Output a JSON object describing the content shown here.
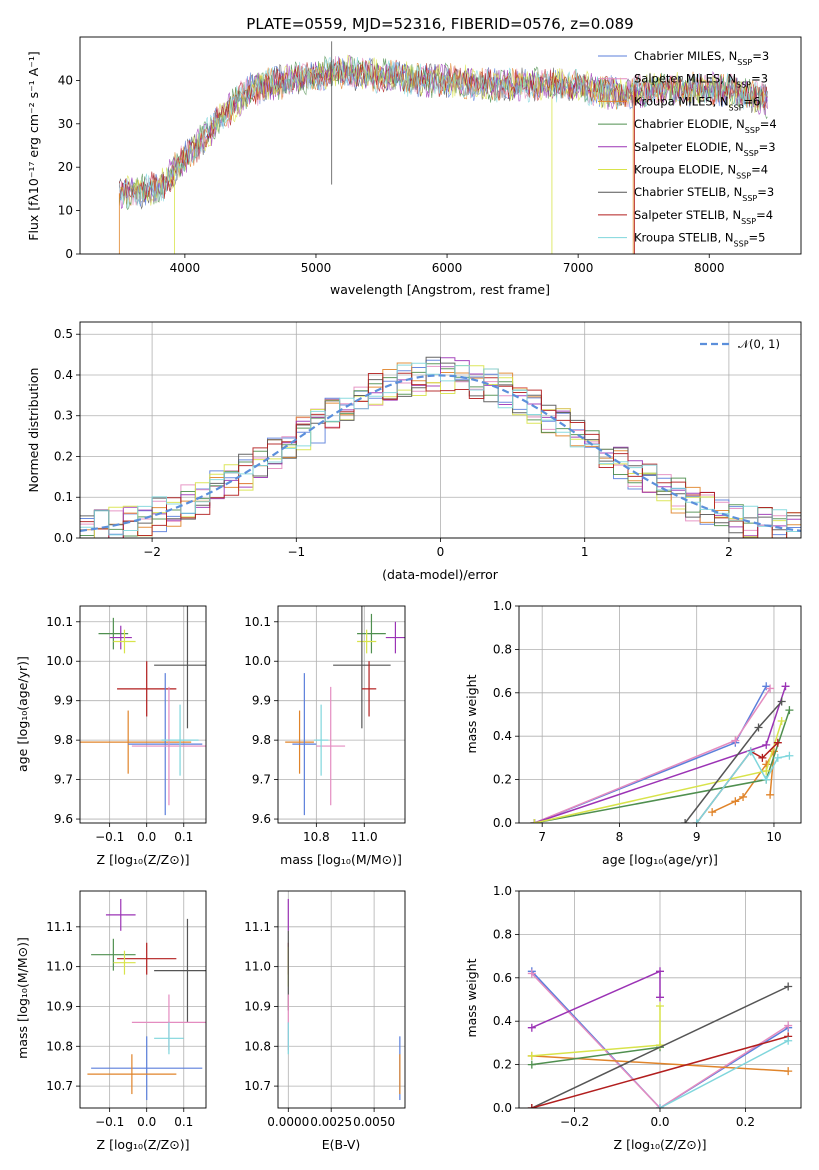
{
  "chart_data": [
    {
      "type": "line",
      "title": "PLATE=0559, MJD=52316, FIBERID=0576, z=0.089",
      "xlabel": "wavelength [Angstrom, rest frame]",
      "ylabel": "Flux [fλ10⁻¹⁷ erg cm⁻² s⁻¹ A⁻¹]",
      "xlim": [
        3200,
        8700
      ],
      "ylim": [
        0,
        50
      ],
      "xticks": [
        "4000",
        "5000",
        "6000",
        "7000",
        "8000"
      ],
      "yticks": [
        "0",
        "10",
        "20",
        "30",
        "40"
      ],
      "grid": false,
      "legend_position": "top-right",
      "series": [
        {
          "name": "Chabrier MILES, N_SSP=3",
          "color": "#5b7fdb"
        },
        {
          "name": "Salpeter MILES, N_SSP=3",
          "color": "#e48cc0"
        },
        {
          "name": "Kroupa MILES, N_SSP=6",
          "color": "#e0842a"
        },
        {
          "name": "Chabrier ELODIE, N_SSP=4",
          "color": "#4f8f4f"
        },
        {
          "name": "Salpeter ELODIE, N_SSP=3",
          "color": "#9b33b5"
        },
        {
          "name": "Kroupa ELODIE, N_SSP=4",
          "color": "#d8e34a"
        },
        {
          "name": "Chabrier STELIB, N_SSP=3",
          "color": "#555555"
        },
        {
          "name": "Salpeter STELIB, N_SSP=4",
          "color": "#b21e1e"
        },
        {
          "name": "Kroupa STELIB, N_SSP=5",
          "color": "#7fd6dc"
        }
      ],
      "continuum": {
        "x": [
          3500,
          3800,
          4000,
          4300,
          4500,
          4800,
          5000,
          5200,
          5500,
          5800,
          6000,
          6300,
          6600,
          6900,
          7100,
          7300,
          7600,
          8000,
          8300,
          8450
        ],
        "y": [
          14,
          15,
          22,
          32,
          38,
          40,
          41,
          42,
          41,
          40,
          40,
          39,
          39,
          39,
          38,
          37,
          38,
          38,
          37,
          35
        ]
      }
    },
    {
      "type": "line",
      "xlabel": "(data-model)/error",
      "ylabel": "Normed distribution",
      "xlim": [
        -2.5,
        2.5
      ],
      "ylim": [
        0,
        0.53
      ],
      "xticks": [
        "−2",
        "−1",
        "0",
        "1",
        "2"
      ],
      "yticks": [
        "0.0",
        "0.1",
        "0.2",
        "0.3",
        "0.4",
        "0.5"
      ],
      "grid": true,
      "legend": "𝒩(0, 1)",
      "gaussian": {
        "mu": 0,
        "sigma": 1
      },
      "histogram_bins": [
        -2.5,
        2.5,
        0.1
      ]
    },
    {
      "type": "scatter",
      "xlabel": "Z [log₁₀(Z/Z⊙)]",
      "ylabel": "age  [log₁₀(age/yr)]",
      "xlim": [
        -0.18,
        0.16
      ],
      "ylim": [
        9.59,
        10.14
      ],
      "xticks": [
        "−0.1",
        "0.0",
        "0.1"
      ],
      "yticks": [
        "9.6",
        "9.7",
        "9.8",
        "9.9",
        "10.0",
        "10.1"
      ],
      "grid": true,
      "points": [
        {
          "x": -0.09,
          "y": 10.07,
          "xerr": 0.04,
          "yerr": 0.04,
          "color": "#4f8f4f"
        },
        {
          "x": -0.07,
          "y": 10.06,
          "xerr": 0.03,
          "yerr": 0.03,
          "color": "#9b33b5"
        },
        {
          "x": -0.06,
          "y": 10.05,
          "xerr": 0.03,
          "yerr": 0.03,
          "color": "#d8e34a"
        },
        {
          "x": 0.11,
          "y": 9.99,
          "xerr": 0.09,
          "yerr": 0.16,
          "color": "#555555"
        },
        {
          "x": 0.0,
          "y": 9.93,
          "xerr": 0.08,
          "yerr": 0.07,
          "color": "#b21e1e"
        },
        {
          "x": -0.05,
          "y": 9.795,
          "xerr": 0.17,
          "yerr": 0.08,
          "color": "#e0842a"
        },
        {
          "x": 0.05,
          "y": 9.79,
          "xerr": 0.1,
          "yerr": 0.18,
          "color": "#5b7fdb"
        },
        {
          "x": 0.06,
          "y": 9.785,
          "xerr": 0.1,
          "yerr": 0.15,
          "color": "#e48cc0"
        },
        {
          "x": 0.09,
          "y": 9.8,
          "xerr": 0.05,
          "yerr": 0.09,
          "color": "#7fd6dc"
        }
      ]
    },
    {
      "type": "scatter",
      "xlabel": "mass [log₁₀(M/M⊙)]",
      "ylabel": "",
      "xlim": [
        10.64,
        11.17
      ],
      "ylim": [
        9.59,
        10.14
      ],
      "xticks": [
        "10.8",
        "11.0"
      ],
      "yticks": [
        "9.6",
        "9.7",
        "9.8",
        "9.9",
        "10.0",
        "10.1"
      ],
      "grid": true,
      "points": [
        {
          "x": 11.03,
          "y": 10.07,
          "xerr": 0.06,
          "yerr": 0.05,
          "color": "#4f8f4f"
        },
        {
          "x": 11.13,
          "y": 10.06,
          "xerr": 0.04,
          "yerr": 0.04,
          "color": "#9b33b5"
        },
        {
          "x": 11.01,
          "y": 10.05,
          "xerr": 0.04,
          "yerr": 0.03,
          "color": "#d8e34a"
        },
        {
          "x": 10.99,
          "y": 9.99,
          "xerr": 0.12,
          "yerr": 0.16,
          "color": "#555555"
        },
        {
          "x": 11.02,
          "y": 9.93,
          "xerr": 0.03,
          "yerr": 0.07,
          "color": "#b21e1e"
        },
        {
          "x": 10.73,
          "y": 9.795,
          "xerr": 0.06,
          "yerr": 0.08,
          "color": "#e0842a"
        },
        {
          "x": 10.75,
          "y": 9.79,
          "xerr": 0.05,
          "yerr": 0.18,
          "color": "#5b7fdb"
        },
        {
          "x": 10.86,
          "y": 9.785,
          "xerr": 0.06,
          "yerr": 0.15,
          "color": "#e48cc0"
        },
        {
          "x": 10.82,
          "y": 9.8,
          "xerr": 0.03,
          "yerr": 0.09,
          "color": "#7fd6dc"
        }
      ]
    },
    {
      "type": "line",
      "xlabel": "age  [log₁₀(age/yr)]",
      "ylabel": "mass weight",
      "xlim": [
        6.7,
        10.35
      ],
      "ylim": [
        0,
        1.0
      ],
      "xticks": [
        "7",
        "8",
        "9",
        "10"
      ],
      "yticks": [
        "0.0",
        "0.2",
        "0.4",
        "0.6",
        "0.8",
        "1.0"
      ],
      "grid": true,
      "series": [
        {
          "color": "#5b7fdb",
          "x": [
            6.9,
            9.5,
            9.9
          ],
          "y": [
            0.0,
            0.37,
            0.63
          ]
        },
        {
          "color": "#e48cc0",
          "x": [
            6.9,
            9.5,
            9.95
          ],
          "y": [
            0.0,
            0.38,
            0.62
          ]
        },
        {
          "color": "#e0842a",
          "x": [
            9.2,
            9.5,
            9.6,
            9.9,
            10.0,
            9.95
          ],
          "y": [
            0.05,
            0.1,
            0.12,
            0.27,
            0.33,
            0.13
          ]
        },
        {
          "color": "#4f8f4f",
          "x": [
            6.9,
            9.9,
            10.2
          ],
          "y": [
            0.0,
            0.2,
            0.52
          ]
        },
        {
          "color": "#9b33b5",
          "x": [
            6.9,
            9.9,
            10.15
          ],
          "y": [
            0.0,
            0.36,
            0.63
          ]
        },
        {
          "color": "#d8e34a",
          "x": [
            6.9,
            9.9,
            10.1
          ],
          "y": [
            0.0,
            0.24,
            0.47
          ]
        },
        {
          "color": "#555555",
          "x": [
            8.85,
            9.8,
            10.1
          ],
          "y": [
            0.0,
            0.44,
            0.56
          ]
        },
        {
          "color": "#b21e1e",
          "x": [
            9.0,
            9.7,
            9.85,
            10.05
          ],
          "y": [
            0.0,
            0.33,
            0.3,
            0.37
          ]
        },
        {
          "color": "#7fd6dc",
          "x": [
            9.0,
            9.7,
            9.9,
            10.05,
            10.2
          ],
          "y": [
            0.0,
            0.33,
            0.2,
            0.3,
            0.31
          ]
        }
      ]
    },
    {
      "type": "scatter",
      "xlabel": "Z [log₁₀(Z/Z⊙)]",
      "ylabel": "mass [log₁₀(M/M⊙)]",
      "xlim": [
        -0.18,
        0.16
      ],
      "ylim": [
        10.645,
        11.19
      ],
      "xticks": [
        "−0.1",
        "0.0",
        "0.1"
      ],
      "yticks": [
        "10.7",
        "10.8",
        "10.9",
        "11.0",
        "11.1"
      ],
      "grid": true,
      "points": [
        {
          "x": -0.07,
          "y": 11.13,
          "xerr": 0.04,
          "yerr": 0.04,
          "color": "#9b33b5"
        },
        {
          "x": -0.09,
          "y": 11.03,
          "xerr": 0.06,
          "yerr": 0.04,
          "color": "#4f8f4f"
        },
        {
          "x": 0.0,
          "y": 11.02,
          "xerr": 0.08,
          "yerr": 0.04,
          "color": "#b21e1e"
        },
        {
          "x": -0.06,
          "y": 11.01,
          "xerr": 0.03,
          "yerr": 0.03,
          "color": "#d8e34a"
        },
        {
          "x": 0.11,
          "y": 10.99,
          "xerr": 0.09,
          "yerr": 0.13,
          "color": "#555555"
        },
        {
          "x": 0.06,
          "y": 10.86,
          "xerr": 0.1,
          "yerr": 0.07,
          "color": "#e48cc0"
        },
        {
          "x": 0.06,
          "y": 10.82,
          "xerr": 0.04,
          "yerr": 0.04,
          "color": "#7fd6dc"
        },
        {
          "x": 0.0,
          "y": 10.745,
          "xerr": 0.15,
          "yerr": 0.08,
          "color": "#5b7fdb"
        },
        {
          "x": -0.04,
          "y": 10.73,
          "xerr": 0.12,
          "yerr": 0.05,
          "color": "#e0842a"
        }
      ]
    },
    {
      "type": "scatter",
      "xlabel": "E(B-V)",
      "ylabel": "",
      "xlim": [
        -0.0006,
        0.0068
      ],
      "ylim": [
        10.645,
        11.19
      ],
      "xticks": [
        "0.0000",
        "0.0025",
        "0.0050"
      ],
      "yticks": [
        "10.7",
        "10.8",
        "10.9",
        "11.0",
        "11.1"
      ],
      "grid": true,
      "points": [
        {
          "x": 0.0,
          "y": 11.13,
          "yerr": 0.04,
          "color": "#9b33b5"
        },
        {
          "x": 0.0,
          "y": 11.02,
          "yerr": 0.04,
          "color": "#b21e1e"
        },
        {
          "x": 0.0,
          "y": 11.0,
          "yerr": 0.05,
          "color": "#d8e34a"
        },
        {
          "x": 0.0,
          "y": 10.99,
          "yerr": 0.1,
          "color": "#555555"
        },
        {
          "x": 0.0,
          "y": 10.86,
          "yerr": 0.07,
          "color": "#e48cc0"
        },
        {
          "x": 0.0,
          "y": 10.82,
          "yerr": 0.04,
          "color": "#7fd6dc"
        },
        {
          "x": 0.0065,
          "y": 10.745,
          "yerr": 0.08,
          "color": "#5b7fdb"
        },
        {
          "x": 0.0065,
          "y": 10.73,
          "yerr": 0.05,
          "color": "#e0842a"
        }
      ]
    },
    {
      "type": "line",
      "xlabel": "Z [log₁₀(Z/Z⊙)]",
      "ylabel": "mass weight",
      "xlim": [
        -0.33,
        0.33
      ],
      "ylim": [
        0,
        1.0
      ],
      "xticks": [
        "−0.2",
        "0.0",
        "0.2"
      ],
      "yticks": [
        "0.0",
        "0.2",
        "0.4",
        "0.6",
        "0.8",
        "1.0"
      ],
      "grid": true,
      "series": [
        {
          "color": "#5b7fdb",
          "x": [
            -0.3,
            0.0,
            0.3
          ],
          "y": [
            0.63,
            0.0,
            0.37
          ]
        },
        {
          "color": "#e48cc0",
          "x": [
            -0.3,
            0.0,
            0.3
          ],
          "y": [
            0.62,
            0.0,
            0.38
          ]
        },
        {
          "color": "#e0842a",
          "x": [
            -0.3,
            0.3
          ],
          "y": [
            0.24,
            0.17
          ]
        },
        {
          "color": "#4f8f4f",
          "x": [
            -0.3,
            0.0
          ],
          "y": [
            0.2,
            0.28
          ]
        },
        {
          "color": "#9b33b5",
          "x": [
            -0.3,
            0.0,
            0.0
          ],
          "y": [
            0.37,
            0.63,
            0.51
          ]
        },
        {
          "color": "#d8e34a",
          "x": [
            -0.3,
            0.0,
            0.0
          ],
          "y": [
            0.24,
            0.29,
            0.47
          ]
        },
        {
          "color": "#555555",
          "x": [
            -0.3,
            0.3
          ],
          "y": [
            0.0,
            0.56
          ]
        },
        {
          "color": "#b21e1e",
          "x": [
            -0.3,
            0.3
          ],
          "y": [
            0.0,
            0.33
          ]
        },
        {
          "color": "#7fd6dc",
          "x": [
            0.0,
            0.3
          ],
          "y": [
            0.0,
            0.31
          ]
        }
      ]
    }
  ]
}
